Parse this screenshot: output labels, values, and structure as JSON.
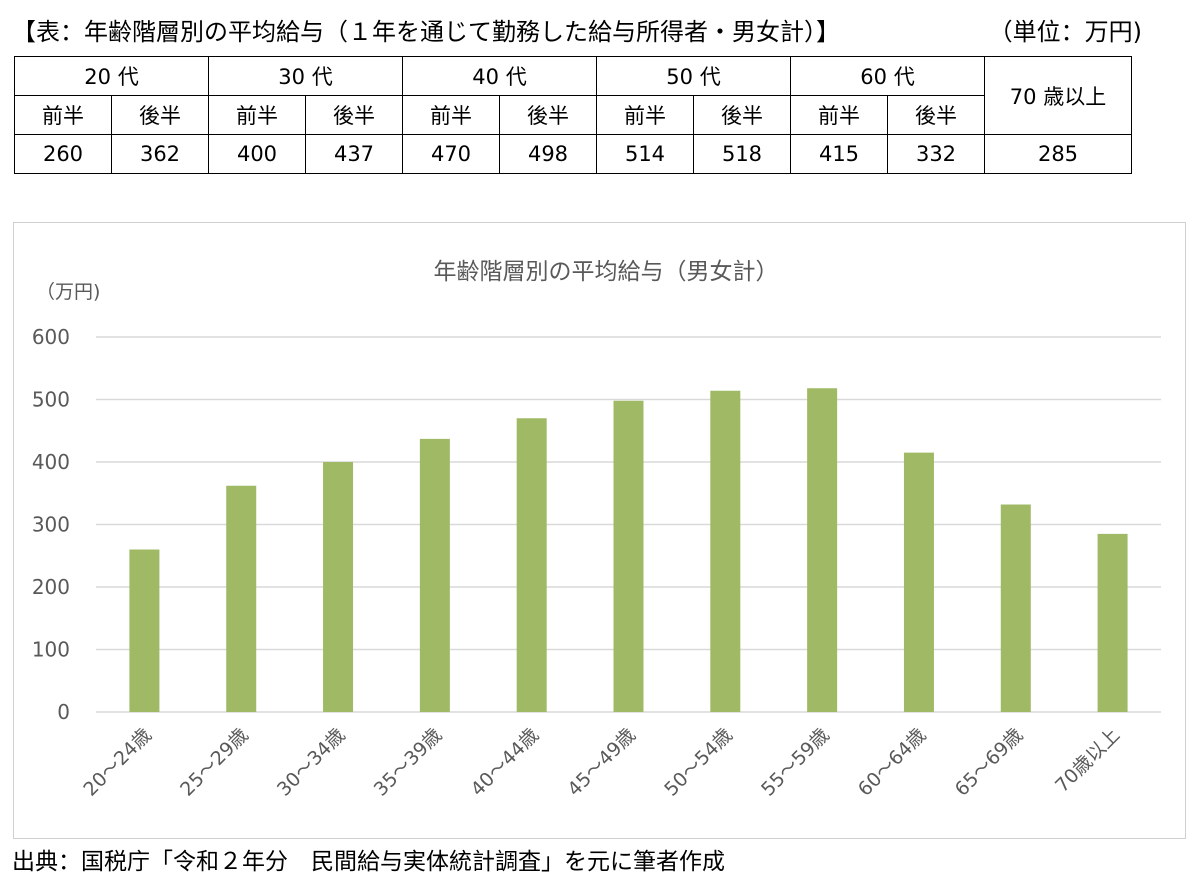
{
  "heading": "【表：年齢階層別の平均給与（１年を通じて勤務した給与所得者・男女計）】",
  "unit_note": "（単位：万円)",
  "table": {
    "decades": [
      "20 代",
      "30 代",
      "40 代",
      "50 代",
      "60 代"
    ],
    "halves": [
      "前半",
      "後半",
      "前半",
      "後半",
      "前半",
      "後半",
      "前半",
      "後半",
      "前半",
      "後半"
    ],
    "last_header": "70 歳以上",
    "values": [
      "260",
      "362",
      "400",
      "437",
      "470",
      "498",
      "514",
      "518",
      "415",
      "332",
      "285"
    ]
  },
  "chart_data": {
    "type": "bar",
    "title": "年齢階層別の平均給与（男女計）",
    "ylabel": "（万円)",
    "xlabel": "",
    "categories": [
      "20～24歳",
      "25～29歳",
      "30～34歳",
      "35～39歳",
      "40～44歳",
      "45～49歳",
      "50～54歳",
      "55～59歳",
      "60～64歳",
      "65～69歳",
      "70歳以上"
    ],
    "values": [
      260,
      362,
      400,
      437,
      470,
      498,
      514,
      518,
      415,
      332,
      285
    ],
    "ylim": [
      0,
      600
    ],
    "yticks": [
      0,
      100,
      200,
      300,
      400,
      500,
      600
    ],
    "grid": true,
    "legend": "none",
    "bar_color": "#a0b965",
    "grid_color": "#d9d9d9",
    "text_color": "#595959"
  },
  "source": "出典：国税庁「令和２年分　民間給与実体統計調査」を元に筆者作成"
}
